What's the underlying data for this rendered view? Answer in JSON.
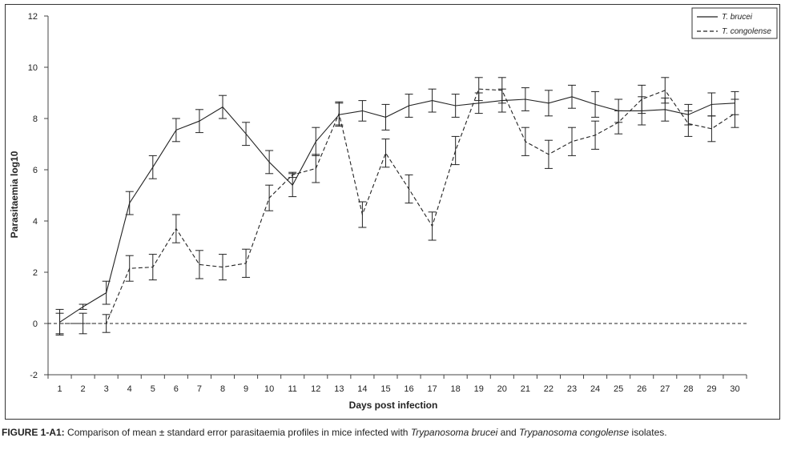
{
  "chart_data": {
    "type": "line",
    "xlabel": "Days post infection",
    "ylabel": "Parasitaemia log10",
    "ylim": [
      -2,
      12
    ],
    "yticks": [
      -2,
      0,
      2,
      4,
      6,
      8,
      10,
      12
    ],
    "x": [
      1,
      2,
      3,
      4,
      5,
      6,
      7,
      8,
      9,
      10,
      11,
      12,
      13,
      14,
      15,
      16,
      17,
      18,
      19,
      20,
      21,
      22,
      23,
      24,
      25,
      26,
      27,
      28,
      29,
      30
    ],
    "legend_position": "top-right",
    "grid": false,
    "series": [
      {
        "name": "T. brucei",
        "line_style": "solid",
        "values": [
          0.05,
          0.65,
          1.2,
          4.7,
          6.1,
          7.55,
          7.9,
          8.45,
          7.4,
          6.3,
          5.4,
          7.1,
          8.15,
          8.3,
          8.05,
          8.5,
          8.7,
          8.5,
          8.6,
          8.7,
          8.75,
          8.6,
          8.85,
          8.55,
          8.3,
          8.3,
          8.35,
          8.15,
          8.55,
          8.6
        ],
        "errors": [
          0.5,
          0.1,
          0.45,
          0.45,
          0.45,
          0.45,
          0.45,
          0.45,
          0.45,
          0.45,
          0.45,
          0.55,
          0.45,
          0.4,
          0.5,
          0.45,
          0.45,
          0.45,
          0.4,
          0.45,
          0.45,
          0.5,
          0.45,
          0.5,
          0.45,
          0.55,
          0.45,
          0.4,
          0.45,
          0.45
        ]
      },
      {
        "name": "T. congolense",
        "line_style": "dashed",
        "values": [
          0.0,
          0.0,
          0.0,
          2.15,
          2.2,
          3.7,
          2.3,
          2.2,
          2.35,
          4.9,
          5.8,
          6.05,
          8.2,
          4.25,
          6.65,
          5.25,
          3.8,
          6.75,
          9.15,
          9.1,
          7.1,
          6.6,
          7.1,
          7.35,
          7.85,
          8.75,
          9.1,
          7.8,
          7.6,
          8.2
        ],
        "errors": [
          0.4,
          0.4,
          0.35,
          0.5,
          0.5,
          0.55,
          0.55,
          0.5,
          0.55,
          0.5,
          0.1,
          0.55,
          0.45,
          0.5,
          0.55,
          0.55,
          0.55,
          0.55,
          0.45,
          0.5,
          0.55,
          0.55,
          0.55,
          0.55,
          0.45,
          0.55,
          0.5,
          0.5,
          0.5,
          0.55
        ]
      }
    ]
  },
  "caption": {
    "label": "FIGURE 1-A1:",
    "text_1": " Comparison of mean ± standard error parasitaemia profiles in mice infected with ",
    "species_1": "Trypanosoma brucei",
    "text_2": " and ",
    "species_2": "Trypanosoma congolense",
    "text_3": " isolates."
  }
}
